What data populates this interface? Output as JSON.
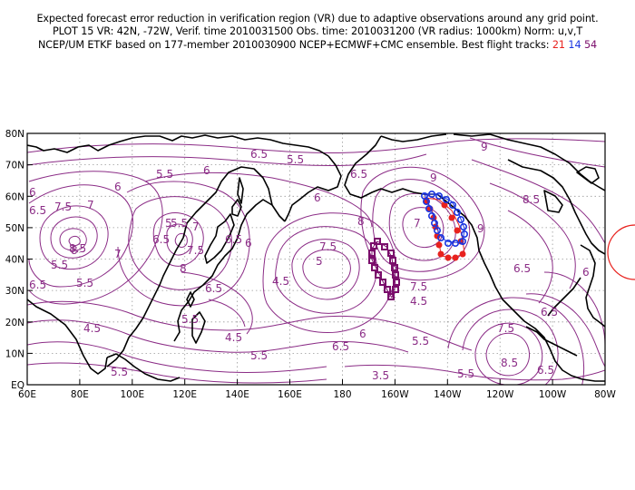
{
  "header": {
    "line1": "Expected forecast error reduction in verification region (VR) due to adaptive observations around any grid point.",
    "line2": "PLOT 15 VR: 42N, -72W, Verif. time 2010031500 Obs. time: 2010031200 (VR radius: 1000km) Norm: u,v,T",
    "line3_prefix": "NCEP/UM ETKF based on 177-member 2010030900 NCEP+ECMWF+CMC ensemble. Best flight tracks:",
    "track_a": "21",
    "track_b": "14",
    "track_c": "54"
  },
  "colors": {
    "contour": "#8b2c86",
    "track_red": "#e8221e",
    "track_blue": "#1a35e0",
    "track_purple": "#7a0d6b",
    "circle": "#e8221e"
  },
  "axes": {
    "y_labels": [
      "80N",
      "70N",
      "60N",
      "50N",
      "40N",
      "30N",
      "20N",
      "10N",
      "EQ"
    ],
    "x_labels": [
      "60E",
      "80E",
      "100E",
      "120E",
      "140E",
      "160E",
      "180",
      "160W",
      "140W",
      "120W",
      "100W",
      "80W"
    ]
  },
  "contour_labels": [
    "6",
    "6",
    "6.5",
    "6.5",
    "6.5",
    "6.5",
    "6.5",
    "6.5",
    "6.5",
    "5.5",
    "5.5",
    "5.5",
    "5.5",
    "5.5",
    "5.5",
    "5.5",
    "5.5",
    "5.5",
    "5.5",
    "5",
    "5",
    "7",
    "7",
    "7",
    "7",
    "7.5",
    "7.5",
    "7.5",
    "7.5",
    "7.5",
    "8",
    "8",
    "8",
    "8.5",
    "8.5",
    "8.5",
    "9",
    "9",
    "9",
    "4.5",
    "4.5",
    "4.5",
    "6",
    "6",
    "6",
    "6",
    "6",
    "6.5",
    "6.5",
    "6.5",
    "6.5",
    "3.5",
    "4.5"
  ],
  "verification_region": {
    "center_lat": 42,
    "center_lon": -72,
    "radius_km": 1000
  }
}
